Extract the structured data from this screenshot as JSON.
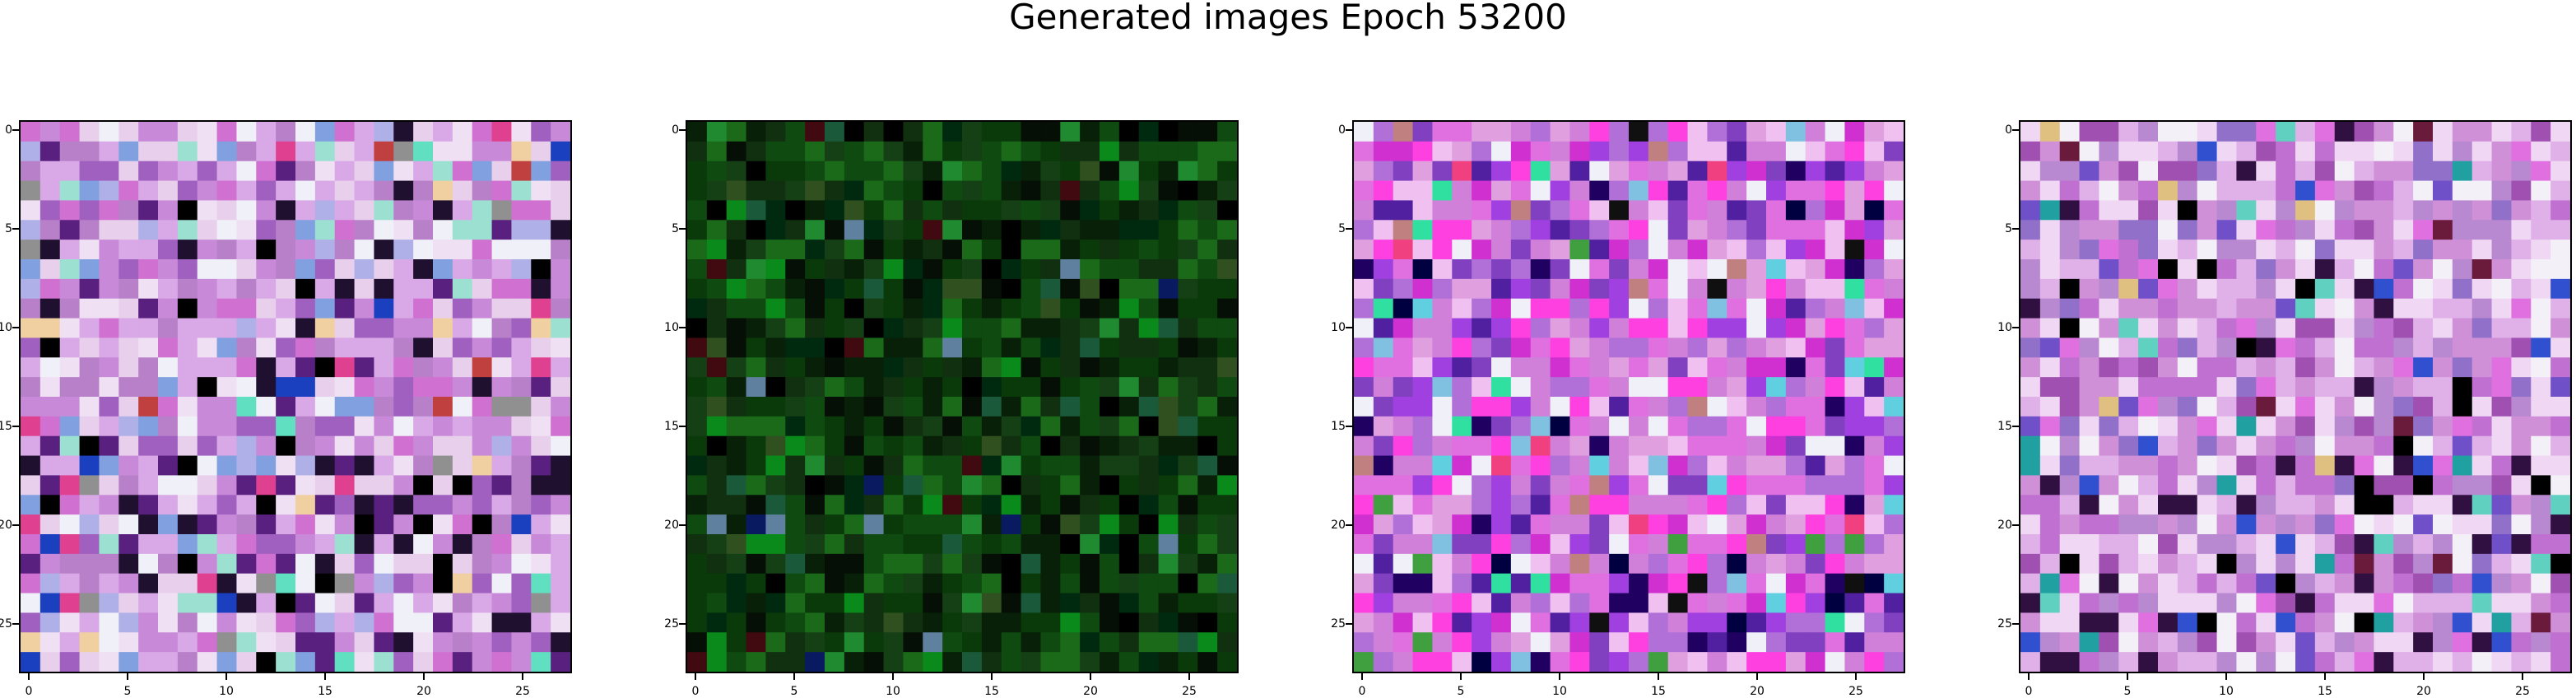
{
  "title": "Generated images Epoch 53200",
  "chart_data": {
    "type": "heatmap",
    "grid_size": 28,
    "x_ticks": [
      0,
      5,
      10,
      15,
      20,
      25
    ],
    "y_ticks": [
      0,
      5,
      10,
      15,
      20,
      25
    ],
    "xlim": [
      -0.5,
      27.5
    ],
    "ylim": [
      27.5,
      -0.5
    ],
    "panels": [
      {
        "palette": [
          "#d9a8e6",
          "#c88ad8",
          "#e8d0ec",
          "#b880c8",
          "#f0e0f4",
          "#a060c0",
          "#9be0d0",
          "#80a0e0",
          "#d070d0",
          "#f0f0f8",
          "#b0b0e8",
          "#60e0c0",
          "#e04090",
          "#5a2080",
          "#201030",
          "#000000",
          "#1a40c0",
          "#c04040",
          "#f0d0a0",
          "#909090"
        ],
        "weights": [
          14,
          12,
          12,
          10,
          9,
          8,
          3,
          4,
          8,
          6,
          5,
          1,
          2,
          3,
          3,
          2,
          1,
          1,
          1,
          1
        ],
        "dark_rows_from": 16
      },
      {
        "palette": [
          "#0a3a0a",
          "#0f4a10",
          "#1a6a1a",
          "#103010",
          "#082008",
          "#050f05",
          "#000000",
          "#0a8a1a",
          "#208a30",
          "#154015",
          "#002a10",
          "#305020",
          "#1a5a3a",
          "#400a10",
          "#0a1a60",
          "#6080a0"
        ],
        "weights": [
          16,
          14,
          9,
          12,
          10,
          8,
          6,
          5,
          3,
          8,
          5,
          2,
          2,
          1,
          1,
          1
        ],
        "dark_rows_from": 22
      },
      {
        "palette": [
          "#d080d8",
          "#e070e0",
          "#f0c0f0",
          "#b070d8",
          "#f0f0f8",
          "#ff40e0",
          "#a040e0",
          "#8040c0",
          "#e0a0e0",
          "#d030d0",
          "#5020a0",
          "#200060",
          "#60d0e0",
          "#80c0e0",
          "#c08080",
          "#000040",
          "#101010",
          "#30e0a0",
          "#f04080",
          "#40a040"
        ],
        "weights": [
          14,
          12,
          10,
          10,
          7,
          8,
          7,
          6,
          9,
          7,
          3,
          2,
          2,
          2,
          1,
          2,
          1,
          1,
          1,
          1
        ],
        "dark_rows_from": 22
      },
      {
        "palette": [
          "#e0b0e8",
          "#d090d8",
          "#f0d8f4",
          "#b888d0",
          "#f4f0f8",
          "#c070d0",
          "#9070c8",
          "#e070e0",
          "#a050b0",
          "#60d0c0",
          "#7050c8",
          "#301040",
          "#000000",
          "#6a1a3a",
          "#e0c080",
          "#3050d0",
          "#20a0a0"
        ],
        "weights": [
          14,
          13,
          13,
          10,
          9,
          8,
          6,
          6,
          5,
          2,
          3,
          3,
          2,
          2,
          1,
          1,
          1
        ],
        "dark_rows_from": 17
      }
    ]
  }
}
